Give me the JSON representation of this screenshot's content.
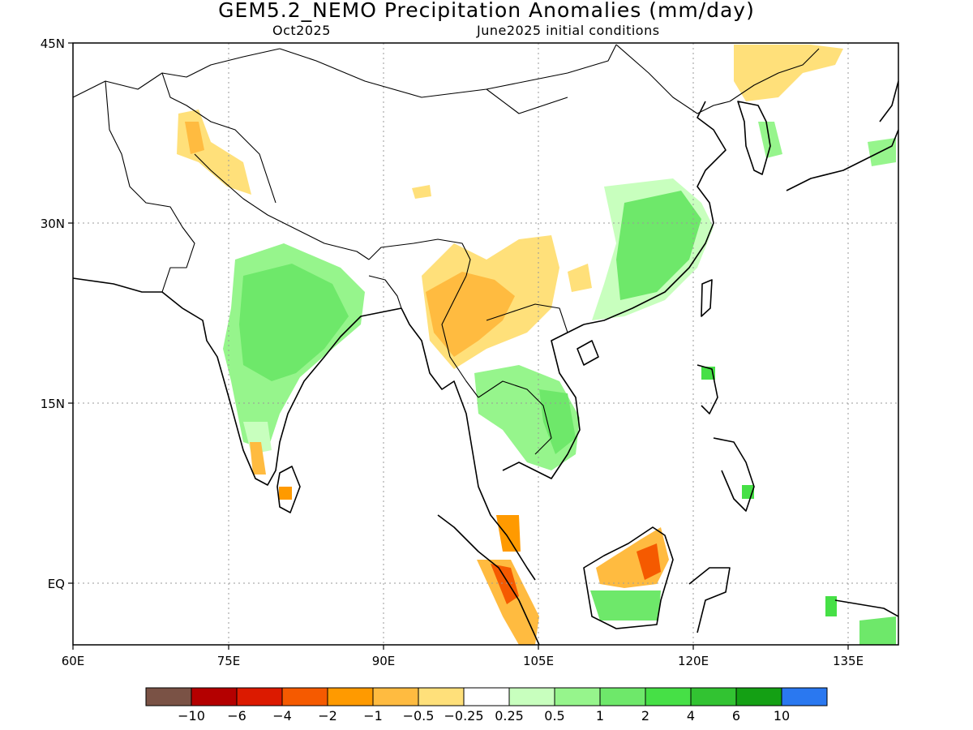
{
  "title": "GEM5.2_NEMO Precipitation Anomalies (mm/day)",
  "valid_month": "Oct2025",
  "initial_conditions": "June2025 initial conditions",
  "lat_labels": [
    "45N",
    "30N",
    "15N",
    "EQ"
  ],
  "lon_labels": [
    "60E",
    "75E",
    "90E",
    "105E",
    "120E",
    "135E"
  ],
  "map_extent": {
    "lon": [
      60,
      140
    ],
    "lat": [
      -5,
      45
    ]
  },
  "colorbar": {
    "labels": [
      "-10",
      "-6",
      "-4",
      "-2",
      "-1",
      "-0.5",
      "-0.25",
      "0.25",
      "0.5",
      "1",
      "2",
      "4",
      "6",
      "10"
    ],
    "colors": [
      "#7a5245",
      "#b40000",
      "#dc1a00",
      "#f55a00",
      "#ff9a00",
      "#ffbb40",
      "#ffe07a",
      "#ffffff",
      "#c8ffbe",
      "#96f58c",
      "#6ee86a",
      "#46e046",
      "#32c332",
      "#14a014",
      "#2a78f0"
    ]
  },
  "anomaly_regions": [
    {
      "name": "india-wet",
      "color": "#96f58c"
    },
    {
      "name": "south-china-wet",
      "color": "#96f58c"
    },
    {
      "name": "indochina-wet",
      "color": "#96f58c"
    },
    {
      "name": "myanmar-dry",
      "color": "#ffbb40"
    },
    {
      "name": "sumatra-dry",
      "color": "#ff9a00"
    },
    {
      "name": "borneo-dry",
      "color": "#ffbb40"
    },
    {
      "name": "north-china-dry",
      "color": "#ffe07a"
    }
  ]
}
